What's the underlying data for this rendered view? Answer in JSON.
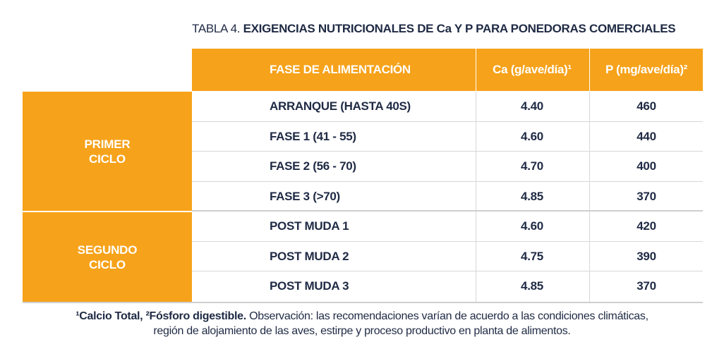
{
  "title": {
    "prefix": "TABLA 4.",
    "main": "EXIGENCIAS NUTRICIONALES DE Ca Y P PARA PONEDORAS COMERCIALES"
  },
  "header": {
    "fase": "FASE DE ALIMENTACIÓN",
    "ca": "Ca (g/ave/día)¹",
    "p": "P (mg/ave/día)²"
  },
  "cycles": {
    "first": [
      "PRIMER",
      "CICLO"
    ],
    "second": [
      "SEGUNDO",
      "CICLO"
    ]
  },
  "rows": [
    {
      "fase": "ARRANQUE (HASTA 40S)",
      "ca": "4.40",
      "p": "460"
    },
    {
      "fase": "FASE 1 (41 - 55)",
      "ca": "4.60",
      "p": "440"
    },
    {
      "fase": "FASE 2 (56 - 70)",
      "ca": "4.70",
      "p": "400"
    },
    {
      "fase": "FASE 3 (>70)",
      "ca": "4.85",
      "p": "370"
    },
    {
      "fase": "POST MUDA 1",
      "ca": "4.60",
      "p": "420"
    },
    {
      "fase": "POST MUDA 2",
      "ca": "4.75",
      "p": "390"
    },
    {
      "fase": "POST MUDA 3",
      "ca": "4.85",
      "p": "370"
    }
  ],
  "footnote": {
    "bold": "¹Calcio Total, ²Fósforo digestible.",
    "line1": " Observación: las recomendaciones varían de acuerdo a las condiciones climáticas,",
    "line2": "región de alojamiento de las aves, estirpe y proceso productivo en planta de alimentos."
  },
  "colors": {
    "accent": "#f6a21a",
    "text": "#1f2a44",
    "grid": "#d7d7d7"
  }
}
